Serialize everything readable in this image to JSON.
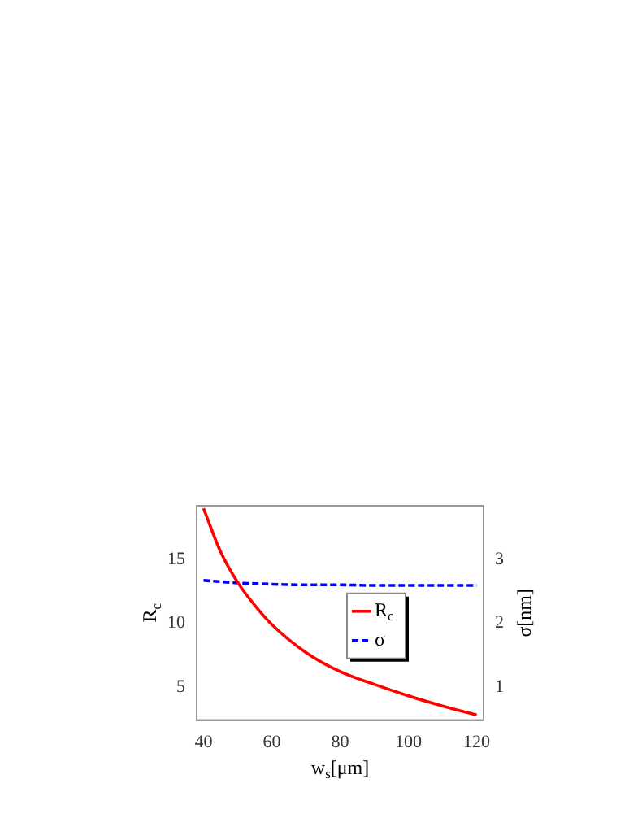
{
  "chart_data": {
    "type": "line",
    "xlabel": "w$_{s}$[μm]",
    "ylabel": "R$_{c}$",
    "y2label": "σ[nm]",
    "x": [
      40,
      45,
      50,
      55,
      60,
      70,
      80,
      90,
      100,
      110,
      120
    ],
    "series": [
      {
        "name": "R$_{c}$",
        "color": "#ff0000",
        "line_style": "solid",
        "values": [
          19,
          15.6,
          13.2,
          11.4,
          9.9,
          7.7,
          6.2,
          5.2,
          4.3,
          3.5,
          2.8
        ]
      },
      {
        "name": "σ",
        "color": "#0000ff",
        "line_style": "dashed",
        "axis": "y2",
        "values": [
          2.67,
          2.65,
          2.63,
          2.62,
          2.61,
          2.6,
          2.6,
          2.59,
          2.59,
          2.59,
          2.59
        ]
      }
    ],
    "xlim": [
      38,
      122
    ],
    "xticks": [
      40,
      60,
      80,
      100,
      120
    ],
    "ylim": [
      2.4,
      19.2
    ],
    "yticks": [
      5,
      10,
      15
    ],
    "y2lim": [
      0.48,
      3.84
    ],
    "y2ticks": [
      1,
      2,
      3
    ],
    "legend": "right",
    "grid": false,
    "marker": "none"
  }
}
